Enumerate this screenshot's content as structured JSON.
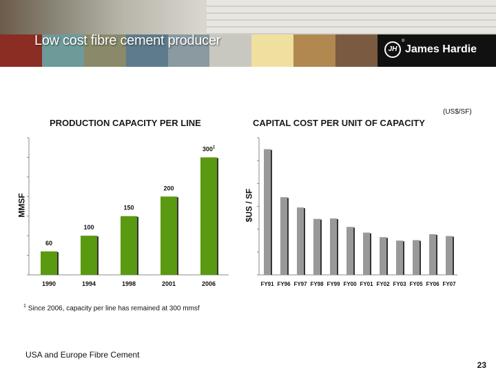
{
  "slide": {
    "title": "Low cost fibre cement producer",
    "logo_text": "James Hardie",
    "logo_mark": "JH",
    "logo_reg": "®",
    "band_colors": [
      "#8b2d22",
      "#6e9a9a",
      "#8a8a6a",
      "#5d7b8c",
      "#8b99a0",
      "#c8c8c0",
      "#f0e0a0",
      "#b08850",
      "#7a5a40",
      "#111111"
    ],
    "footnote_marker": "1",
    "footnote_text": "Since 2006, capacity per line has remained at 300 mmsf",
    "footer_left": "USA and Europe Fibre Cement",
    "page_number": "23"
  },
  "chart_data": [
    {
      "type": "bar",
      "title": "PRODUCTION CAPACITY PER LINE",
      "ylabel": "MMSF",
      "categories": [
        "1990",
        "1994",
        "1998",
        "2001",
        "2006"
      ],
      "values": [
        60,
        100,
        150,
        200,
        300
      ],
      "data_labels": [
        "60",
        "100",
        "150",
        "200",
        "300"
      ],
      "data_label_superscripts": [
        "",
        "",
        "",
        "",
        "1"
      ],
      "ylim": [
        0,
        350
      ],
      "y_tick_step": 50,
      "bar_color": "#5a9a10",
      "grid": false
    },
    {
      "type": "bar",
      "title": "CAPITAL COST PER UNIT OF CAPACITY",
      "unit_note": "(US$/SF)",
      "ylabel": "$US / SF",
      "categories": [
        "FY91",
        "FY96",
        "FY97",
        "FY98",
        "FY99",
        "FY00",
        "FY01",
        "FY02",
        "FY03",
        "FY05",
        "FY06",
        "FY07"
      ],
      "values": [
        5.5,
        3.4,
        2.95,
        2.45,
        2.47,
        2.1,
        1.85,
        1.65,
        1.5,
        1.52,
        1.78,
        1.7
      ],
      "ylim": [
        0,
        6
      ],
      "y_tick_step": 1,
      "bar_color": "#999999",
      "grid": false
    }
  ]
}
